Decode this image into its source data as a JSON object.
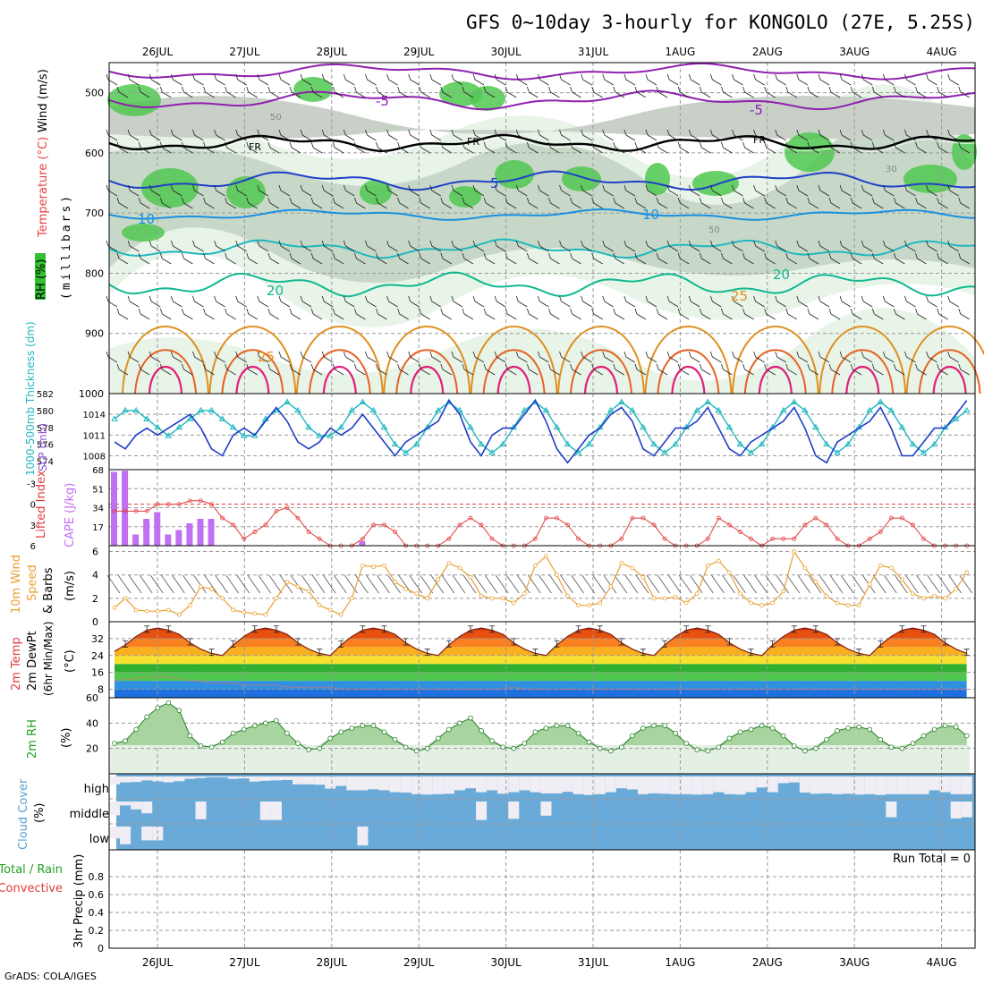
{
  "title": "GFS 0~10day 3-hourly for KONGOLO (27E, 5.25S)",
  "credit": "GrADS: COLA/IGES",
  "dates": [
    "26JUL",
    "27JUL",
    "28JUL",
    "29JUL",
    "30JUL",
    "31JUL",
    "1AUG",
    "2AUG",
    "3AUG",
    "4AUG"
  ],
  "panels": {
    "upper": {
      "label_rh": "RH (%)",
      "label_temp": "Temperature (°C)",
      "label_wind": "Wind (m/s)",
      "label_mb": "(millibars)",
      "pressure_ticks": [
        500,
        600,
        700,
        800,
        900,
        1000
      ],
      "contour_labels": [
        "-5",
        "-5",
        "FR",
        "FR",
        "FR",
        "5",
        "10",
        "10",
        "20",
        "20",
        "25",
        "25",
        "50",
        "50",
        "30"
      ]
    },
    "slp": {
      "label_thick": "1000-500mb Thickness (dm)",
      "label_slp": "SLP (mb)",
      "left_ticks": [
        574,
        576,
        578,
        580,
        582
      ],
      "right_ticks": [
        1008,
        1011,
        1014
      ]
    },
    "cape": {
      "label_li": "Lifted Index",
      "label_cape": "CAPE (J/kg)",
      "li_ticks": [
        "-3",
        "0",
        "3",
        "6"
      ],
      "cape_ticks": [
        17,
        34,
        51,
        68
      ]
    },
    "wind10": {
      "label": "10m Wind",
      "label2": "Speed",
      "label3": "& Barbs",
      "unit": "(m/s)",
      "ticks": [
        0,
        2,
        4,
        6
      ]
    },
    "temp2m": {
      "label1": "2m Temp",
      "label2": "2m DewPt",
      "label3": "(6hr Min/Max)",
      "unit": "(°C)",
      "ticks": [
        8,
        16,
        24,
        32
      ]
    },
    "rh2m": {
      "label": "2m RH",
      "unit": "(%)",
      "ticks": [
        20,
        40,
        60
      ]
    },
    "cloud": {
      "label": "Cloud Cover",
      "unit": "(%)",
      "levels": [
        "high",
        "middle",
        "low"
      ]
    },
    "precip": {
      "label1": "Total / Rain",
      "label2": "Convective",
      "unit": "3hr Precip (mm)",
      "ticks": [
        "0",
        "0.2",
        "0.4",
        "0.6",
        "0.8"
      ],
      "run_total": "Run Total = 0"
    }
  },
  "colors": {
    "slp": "#1e40c8",
    "thickness": "#20b8c0",
    "cape": "#c070f0",
    "lifted_index": "#e03c3c",
    "wind_speed": "#e8a030",
    "rh_fill": "#60b060",
    "cloud": "#6aaad8",
    "temp_hot": "#e84010",
    "dewpoint_band": "#3090e0"
  },
  "chart_data": {
    "type": "line",
    "x_start": "2025-07-25 12Z",
    "step_hours": 3,
    "n_steps": 80,
    "slp_mb": [
      1010,
      1009,
      1011,
      1012,
      1011,
      1012,
      1013,
      1014,
      1012,
      1009,
      1008,
      1011,
      1012,
      1011,
      1013,
      1015,
      1013,
      1010,
      1009,
      1010,
      1012,
      1011,
      1012,
      1014,
      1012,
      1010,
      1008,
      1010,
      1011,
      1012,
      1013,
      1016,
      1014,
      1010,
      1008,
      1011,
      1012,
      1012,
      1014,
      1016,
      1013,
      1009,
      1007,
      1009,
      1011,
      1012,
      1014,
      1015,
      1013,
      1009,
      1008,
      1010,
      1012,
      1012,
      1013,
      1015,
      1012,
      1009,
      1008,
      1010,
      1011,
      1012,
      1013,
      1015,
      1012,
      1008,
      1007,
      1010,
      1011,
      1012,
      1013,
      1015,
      1012,
      1008,
      1008,
      1010,
      1012,
      1012,
      1014,
      1016
    ],
    "thickness_dm": [
      579,
      580,
      580,
      579,
      578,
      577,
      578,
      579,
      580,
      580,
      579,
      578,
      577,
      577,
      579,
      580,
      581,
      580,
      578,
      577,
      577,
      578,
      580,
      581,
      580,
      578,
      576,
      575,
      576,
      578,
      580,
      581,
      580,
      578,
      576,
      575,
      576,
      578,
      580,
      581,
      580,
      578,
      576,
      575,
      576,
      578,
      580,
      581,
      580,
      578,
      576,
      575,
      576,
      578,
      580,
      581,
      580,
      578,
      576,
      575,
      576,
      578,
      580,
      581,
      580,
      578,
      576,
      575,
      576,
      578,
      580,
      581,
      580,
      578,
      576,
      575,
      576,
      578,
      579,
      580
    ],
    "cape_jkg": [
      66,
      67,
      10,
      24,
      30,
      10,
      14,
      20,
      24,
      24,
      0,
      0,
      0,
      0,
      0,
      0,
      0,
      0,
      0,
      0,
      0,
      0,
      0,
      4,
      0,
      0,
      0,
      0,
      0,
      0,
      0,
      0,
      0,
      0,
      0,
      0,
      0,
      0,
      0,
      0,
      0,
      0,
      0,
      0,
      0,
      0,
      0,
      0,
      0,
      0,
      0,
      0,
      0,
      0,
      0,
      0,
      0,
      0,
      0,
      0,
      0,
      0,
      0,
      0,
      0,
      0,
      0,
      0,
      0,
      0,
      0,
      0,
      0,
      0,
      0,
      0,
      0,
      0,
      0,
      0
    ],
    "lifted_index": [
      1,
      1,
      1,
      1,
      0,
      0,
      0,
      -0.5,
      -0.5,
      0,
      2,
      3,
      5,
      4,
      3,
      1,
      0.5,
      2,
      4,
      5,
      6,
      6,
      6,
      5,
      3,
      3,
      4,
      6,
      6,
      6,
      6,
      5,
      3,
      2,
      3,
      5,
      6,
      6,
      6,
      5,
      2,
      2,
      3,
      5,
      6,
      6,
      6,
      5,
      2,
      2,
      3,
      5,
      6,
      6,
      6,
      5,
      2,
      3,
      4,
      5,
      6,
      5,
      5,
      5,
      3,
      2,
      3,
      5,
      6,
      6,
      5,
      4,
      2,
      2,
      3,
      5,
      6,
      6,
      6,
      6
    ],
    "wind10_ms": [
      1.2,
      2.0,
      1.0,
      0.9,
      0.9,
      1.0,
      0.6,
      1.4,
      3.0,
      2.8,
      2.0,
      1.0,
      0.8,
      0.7,
      0.6,
      2.0,
      3.4,
      3.0,
      2.6,
      1.4,
      1.0,
      0.6,
      2.0,
      4.8,
      4.7,
      4.8,
      3.4,
      2.8,
      2.4,
      2.0,
      3.6,
      5.0,
      4.6,
      3.8,
      2.2,
      2.0,
      2.0,
      1.6,
      2.4,
      4.8,
      5.6,
      4.0,
      2.2,
      1.4,
      1.4,
      1.6,
      3.0,
      5.0,
      4.6,
      3.8,
      2.0,
      2.0,
      2.1,
      1.6,
      2.4,
      4.8,
      5.2,
      4.2,
      2.4,
      1.6,
      1.4,
      1.6,
      2.6,
      6.0,
      4.6,
      3.4,
      2.2,
      1.6,
      1.4,
      1.4,
      3.2,
      4.8,
      4.6,
      3.6,
      2.4,
      2.0,
      2.2,
      2.0,
      2.8,
      4.2
    ],
    "temp2m_c": [
      26,
      29,
      33,
      36,
      37,
      36,
      34,
      30,
      27,
      25,
      24,
      29,
      33,
      36,
      37,
      36,
      34,
      30,
      27,
      25,
      24,
      29,
      33,
      36,
      37,
      36,
      34,
      30,
      27,
      25,
      24,
      29,
      33,
      36,
      37,
      36,
      34,
      30,
      27,
      25,
      24,
      29,
      33,
      36,
      37,
      36,
      34,
      30,
      27,
      25,
      24,
      29,
      33,
      36,
      37,
      36,
      34,
      30,
      27,
      25,
      24,
      29,
      33,
      36,
      37,
      36,
      34,
      30,
      27,
      25,
      24,
      29,
      33,
      36,
      37,
      36,
      34,
      30,
      27,
      25
    ],
    "dewpt2m_c": [
      12,
      13,
      13,
      14,
      14,
      14,
      13,
      12,
      12,
      11,
      11,
      11,
      10,
      10,
      10,
      10,
      9,
      9,
      9,
      9,
      9,
      8,
      8,
      8,
      8,
      8,
      8,
      8,
      8,
      8,
      8,
      8,
      8,
      8,
      8,
      8,
      8,
      9,
      8,
      8,
      8,
      8,
      8,
      8,
      8,
      8,
      8,
      8,
      8,
      8,
      8,
      8,
      8,
      8,
      8,
      8,
      8,
      8,
      8,
      8,
      8,
      8,
      8,
      8,
      8,
      8,
      8,
      8,
      8,
      8,
      8,
      8,
      8,
      8,
      8,
      8,
      8,
      8,
      8,
      8
    ],
    "rh2m_pct": [
      24,
      26,
      35,
      45,
      52,
      56,
      50,
      30,
      22,
      21,
      25,
      32,
      35,
      38,
      40,
      42,
      32,
      24,
      19,
      20,
      28,
      33,
      36,
      38,
      38,
      33,
      27,
      21,
      18,
      20,
      28,
      35,
      40,
      44,
      34,
      26,
      21,
      20,
      24,
      33,
      36,
      38,
      38,
      32,
      25,
      20,
      18,
      21,
      30,
      36,
      38,
      38,
      32,
      24,
      19,
      18,
      21,
      28,
      33,
      35,
      38,
      36,
      30,
      22,
      18,
      20,
      27,
      34,
      36,
      37,
      35,
      27,
      21,
      20,
      24,
      30,
      35,
      38,
      37,
      30
    ],
    "cloud_high_pct": [
      60,
      70,
      72,
      80,
      75,
      70,
      76,
      88,
      92,
      96,
      96,
      88,
      90,
      74,
      78,
      80,
      82,
      60,
      60,
      58,
      38,
      52,
      30,
      30,
      35,
      30,
      20,
      18,
      10,
      8,
      10,
      12,
      30,
      40,
      20,
      30,
      12,
      20,
      30,
      20,
      14,
      14,
      22,
      10,
      6,
      10,
      20,
      40,
      34,
      10,
      14,
      12,
      10,
      10,
      8,
      10,
      20,
      10,
      8,
      20,
      44,
      20,
      66,
      70,
      18,
      12,
      14,
      10,
      12,
      8,
      10,
      6,
      10,
      10,
      10,
      10,
      30,
      20,
      10,
      10
    ],
    "cloud_mid_pct": [
      30,
      80,
      60,
      40,
      0,
      0,
      0,
      0,
      10,
      0,
      0,
      0,
      0,
      0,
      6,
      6,
      0,
      0,
      0,
      0,
      0,
      0,
      0,
      0,
      0,
      0,
      0,
      0,
      0,
      0,
      0,
      0,
      0,
      0,
      6,
      0,
      0,
      12,
      0,
      0,
      28,
      0,
      0,
      0,
      0,
      0,
      0,
      0,
      0,
      0,
      0,
      0,
      0,
      0,
      0,
      0,
      0,
      0,
      0,
      0,
      0,
      0,
      0,
      0,
      0,
      0,
      0,
      0,
      0,
      0,
      0,
      0,
      20,
      0,
      0,
      0,
      0,
      0,
      14,
      20
    ],
    "cloud_low_pct": [
      40,
      10,
      0,
      30,
      30,
      0,
      0,
      0,
      0,
      0,
      0,
      0,
      0,
      0,
      0,
      0,
      0,
      0,
      0,
      0,
      0,
      0,
      0,
      4,
      0,
      0,
      0,
      0,
      0,
      0,
      0,
      0,
      0,
      0,
      0,
      0,
      0,
      0,
      0,
      0,
      0,
      0,
      0,
      0,
      0,
      0,
      0,
      0,
      0,
      0,
      0,
      0,
      0,
      0,
      0,
      0,
      0,
      0,
      0,
      0,
      0,
      0,
      0,
      0,
      0,
      0,
      0,
      0,
      0,
      0,
      0,
      0,
      0,
      0,
      0,
      0,
      0,
      0,
      0,
      0
    ],
    "precip_3hr_mm": [
      0,
      0,
      0,
      0,
      0,
      0,
      0,
      0,
      0,
      0,
      0,
      0,
      0,
      0,
      0,
      0,
      0,
      0,
      0,
      0,
      0,
      0,
      0,
      0,
      0,
      0,
      0,
      0,
      0,
      0,
      0,
      0,
      0,
      0,
      0,
      0,
      0,
      0,
      0,
      0,
      0,
      0,
      0,
      0,
      0,
      0,
      0,
      0,
      0,
      0,
      0,
      0,
      0,
      0,
      0,
      0,
      0,
      0,
      0,
      0,
      0,
      0,
      0,
      0,
      0,
      0,
      0,
      0,
      0,
      0,
      0,
      0,
      0,
      0,
      0,
      0,
      0,
      0,
      0,
      0
    ],
    "slp_ylim": [
      1006,
      1017
    ],
    "thickness_ylim": [
      573,
      582
    ],
    "cape_ylim": [
      0,
      68
    ],
    "li_ylim": [
      6,
      -5
    ],
    "wind_ylim": [
      0,
      6.5
    ],
    "temp_ylim": [
      4,
      40
    ],
    "rh_ylim": [
      0,
      60
    ],
    "precip_ylim": [
      0,
      1
    ]
  }
}
